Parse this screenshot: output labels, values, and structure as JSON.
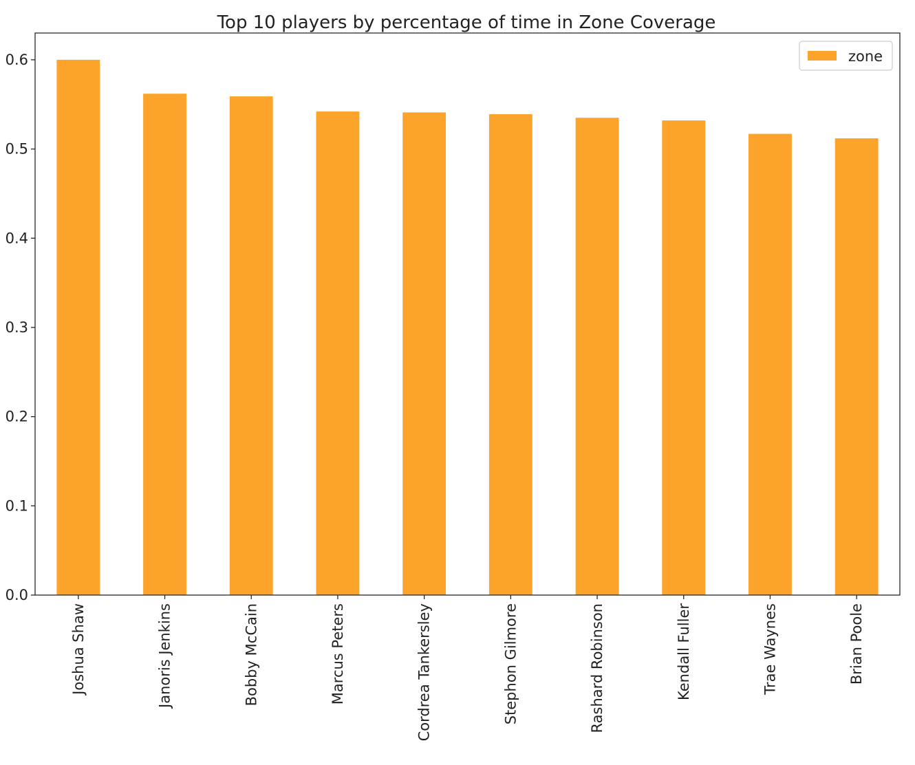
{
  "chart_data": {
    "type": "bar",
    "title": "Top 10 players by percentage of time in Zone Coverage",
    "xlabel": "",
    "ylabel": "",
    "categories": [
      "Joshua Shaw",
      "Janoris Jenkins",
      "Bobby McCain",
      "Marcus Peters",
      "Cordrea Tankersley",
      "Stephon Gilmore",
      "Rashard Robinson",
      "Kendall Fuller",
      "Trae Waynes",
      "Brian Poole"
    ],
    "series": [
      {
        "name": "zone",
        "color": "#fba32a",
        "values": [
          0.6,
          0.562,
          0.559,
          0.542,
          0.541,
          0.539,
          0.535,
          0.532,
          0.517,
          0.512
        ]
      }
    ],
    "ylim": [
      0.0,
      0.63
    ],
    "yticks": [
      "0.0",
      "0.1",
      "0.2",
      "0.3",
      "0.4",
      "0.5",
      "0.6"
    ],
    "grid": false,
    "legend": {
      "position": "top-right",
      "entries": [
        "zone"
      ]
    }
  }
}
